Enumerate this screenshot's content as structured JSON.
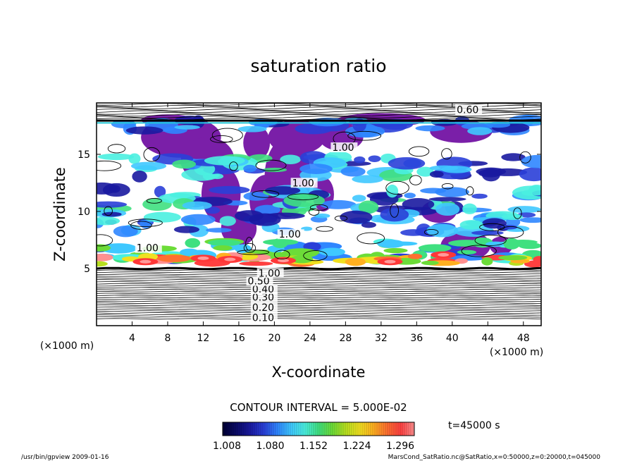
{
  "chart_data": {
    "type": "heatmap",
    "title": "saturation ratio",
    "xlabel": "X-coordinate",
    "ylabel": "Z-coordinate",
    "x_unit": "(×1000 m)",
    "y_unit": "(×1000 m)",
    "xlim": [
      0,
      50
    ],
    "ylim": [
      0,
      19.5
    ],
    "x_ticks": [
      "4",
      "8",
      "12",
      "16",
      "20",
      "24",
      "28",
      "32",
      "36",
      "40",
      "44",
      "48"
    ],
    "y_ticks": [
      "5",
      "10",
      "15"
    ],
    "contour_labels": [
      "0.10",
      "0.20",
      "0.30",
      "0.40",
      "0.50",
      "1.00",
      "0.60",
      "1.00",
      "1.00",
      "1.00",
      "1.00"
    ],
    "contour_interval_text": "CONTOUR INTERVAL = 5.000E-02",
    "colorbar": {
      "ticks": [
        "1.008",
        "1.080",
        "1.152",
        "1.224",
        "1.296"
      ],
      "colors": [
        "#000033",
        "#0a0a66",
        "#1a1aa0",
        "#2a3fd8",
        "#2f86ff",
        "#3fc8ff",
        "#4af0e0",
        "#3fe080",
        "#6cdc38",
        "#b8e020",
        "#f0e020",
        "#ffb020",
        "#ff7030",
        "#ff4040",
        "#ff9090"
      ]
    },
    "time_label": "t=45000 s"
  },
  "footer": {
    "left": "/usr/bin/gpview   2009-01-16",
    "right": "MarsCond_SatRatio.nc@SatRatio,x=0:50000,z=0:20000,t=045000"
  },
  "colors": {
    "supersat_purple": "#7a1fa8",
    "cyan_line": "#21c8d8"
  }
}
